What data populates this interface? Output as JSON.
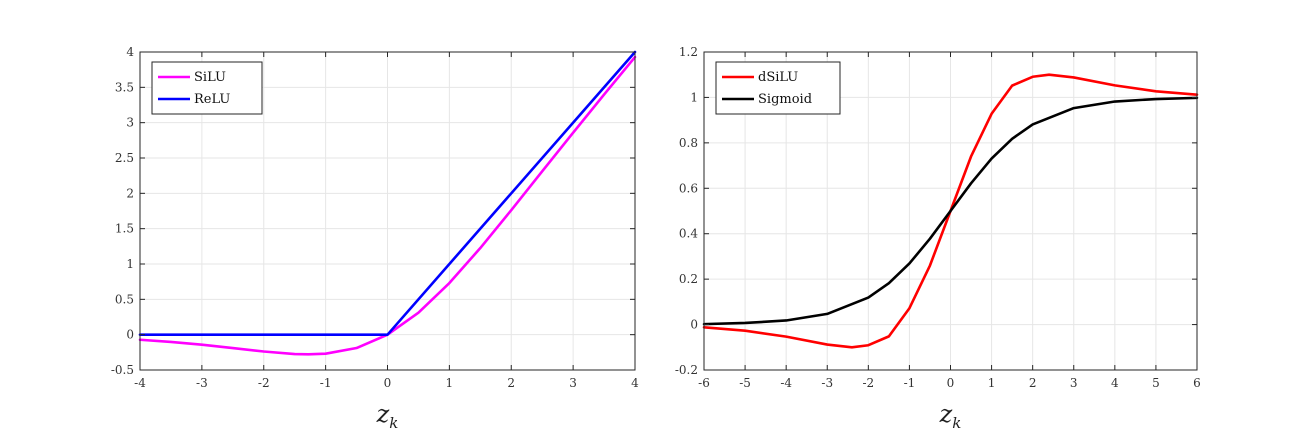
{
  "chart_data": [
    {
      "type": "line",
      "xlabel": "z",
      "xlabel_subscript": "k",
      "xlim": [
        -4,
        4
      ],
      "ylim": [
        -0.5,
        4
      ],
      "xticks": [
        -4,
        -3,
        -2,
        -1,
        0,
        1,
        2,
        3,
        4
      ],
      "xtick_labels": [
        "-4",
        "-3",
        "-2",
        "-1",
        "0",
        "1",
        "2",
        "3",
        "4"
      ],
      "yticks": [
        -0.5,
        0,
        0.5,
        1,
        1.5,
        2,
        2.5,
        3,
        3.5,
        4
      ],
      "ytick_labels": [
        "-0.5",
        "0",
        "0.5",
        "1",
        "1.5",
        "2",
        "2.5",
        "3",
        "3.5",
        "4"
      ],
      "grid": true,
      "legend_position": "top-left",
      "series": [
        {
          "name": "SiLU",
          "color": "#ff00ff",
          "x": [
            -4,
            -3.5,
            -3,
            -2.5,
            -2,
            -1.5,
            -1.278,
            -1,
            -0.5,
            0,
            0.5,
            1,
            1.5,
            2,
            2.5,
            3,
            3.5,
            4
          ],
          "y": [
            -0.072,
            -0.103,
            -0.142,
            -0.189,
            -0.238,
            -0.274,
            -0.278,
            -0.269,
            -0.189,
            0,
            0.311,
            0.731,
            1.226,
            1.762,
            2.311,
            2.858,
            3.397,
            3.928
          ]
        },
        {
          "name": "ReLU",
          "color": "#0000ff",
          "x": [
            -4,
            0,
            4
          ],
          "y": [
            0,
            0,
            4
          ]
        }
      ]
    },
    {
      "type": "line",
      "xlabel": "z",
      "xlabel_subscript": "k",
      "xlim": [
        -6,
        6
      ],
      "ylim": [
        -0.2,
        1.2
      ],
      "xticks": [
        -6,
        -5,
        -4,
        -3,
        -2,
        -1,
        0,
        1,
        2,
        3,
        4,
        5,
        6
      ],
      "xtick_labels": [
        "-6",
        "-5",
        "-4",
        "-3",
        "-2",
        "-1",
        "0",
        "1",
        "2",
        "3",
        "4",
        "5",
        "6"
      ],
      "yticks": [
        -0.2,
        0,
        0.2,
        0.4,
        0.6,
        0.8,
        1,
        1.2
      ],
      "ytick_labels": [
        "-0.2",
        "0",
        "0.2",
        "0.4",
        "0.6",
        "0.8",
        "1",
        "1.2"
      ],
      "grid": true,
      "legend_position": "top-left",
      "series": [
        {
          "name": "dSiLU",
          "color": "#ff0000",
          "x": [
            -6,
            -5,
            -4,
            -3,
            -2.4,
            -2,
            -1.5,
            -1,
            -0.5,
            0,
            0.5,
            1,
            1.5,
            2,
            2.4,
            3,
            4,
            5,
            6
          ],
          "y": [
            -0.012,
            -0.027,
            -0.053,
            -0.088,
            -0.1,
            -0.091,
            -0.052,
            0.072,
            0.26,
            0.5,
            0.74,
            0.928,
            1.052,
            1.091,
            1.1,
            1.088,
            1.053,
            1.027,
            1.012
          ]
        },
        {
          "name": "Sigmoid",
          "color": "#000000",
          "x": [
            -6,
            -5,
            -4,
            -3,
            -2,
            -1.5,
            -1,
            -0.5,
            0,
            0.5,
            1,
            1.5,
            2,
            3,
            4,
            5,
            6
          ],
          "y": [
            0.002,
            0.007,
            0.018,
            0.047,
            0.119,
            0.182,
            0.269,
            0.378,
            0.5,
            0.622,
            0.731,
            0.818,
            0.881,
            0.953,
            0.982,
            0.993,
            0.998
          ]
        }
      ]
    }
  ]
}
